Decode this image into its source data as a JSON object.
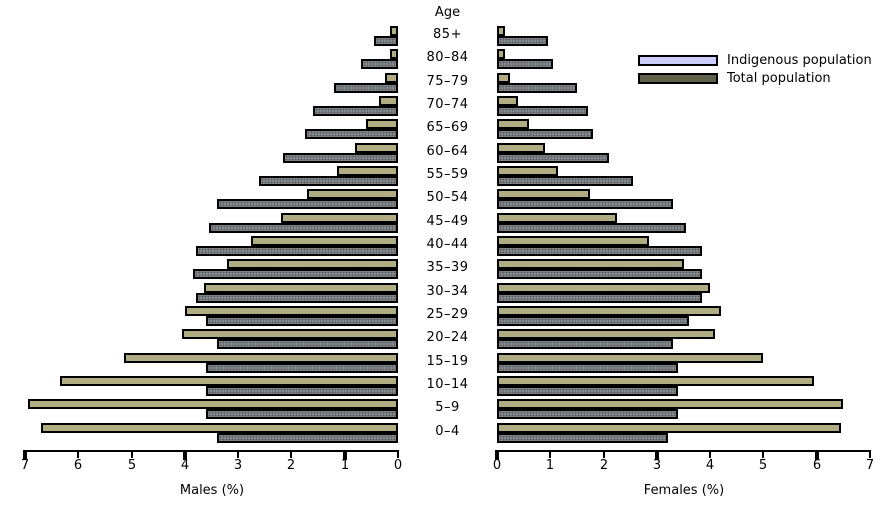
{
  "chart_data": {
    "type": "bar",
    "subtype": "population_pyramid_grouped_horizontal",
    "age_axis_title": "Age",
    "age_groups": [
      "85+",
      "80–84",
      "75–79",
      "70–74",
      "65–69",
      "60–64",
      "55–59",
      "50–54",
      "45–49",
      "40–44",
      "35–39",
      "30–34",
      "25–29",
      "20–24",
      "15–19",
      "10–14",
      "5–9",
      "0–4"
    ],
    "legend": [
      {
        "label": "Indigenous population",
        "swatch_color": "#ccccff"
      },
      {
        "label": "Total population",
        "swatch_color": "#60604a"
      }
    ],
    "legend_position": "top-right",
    "grid": false,
    "x_max": 7,
    "bar_colors": {
      "indigenous": "#b1ad83",
      "total": "#7e8a8b"
    },
    "males": {
      "axis_label": "Males (%)",
      "tick_labels": [
        "7",
        "6",
        "5",
        "4",
        "3",
        "2",
        "1",
        "0"
      ],
      "major_ticks": [
        "7",
        "4",
        "1"
      ],
      "indigenous": [
        0.15,
        0.15,
        0.25,
        0.35,
        0.6,
        0.8,
        1.15,
        1.7,
        2.2,
        2.75,
        3.2,
        3.65,
        4.0,
        4.05,
        5.15,
        6.35,
        6.95,
        6.7
      ],
      "total": [
        0.45,
        0.7,
        1.2,
        1.6,
        1.75,
        2.15,
        2.6,
        3.4,
        3.55,
        3.8,
        3.85,
        3.8,
        3.6,
        3.4,
        3.6,
        3.6,
        3.6,
        3.4
      ]
    },
    "females": {
      "axis_label": "Females (%)",
      "tick_labels": [
        "0",
        "1",
        "2",
        "3",
        "4",
        "5",
        "6",
        "7"
      ],
      "major_ticks": [
        "0",
        "3",
        "6"
      ],
      "indigenous": [
        0.15,
        0.15,
        0.25,
        0.4,
        0.6,
        0.9,
        1.15,
        1.75,
        2.25,
        2.85,
        3.5,
        4.0,
        4.2,
        4.1,
        5.0,
        5.95,
        6.5,
        6.45
      ],
      "total": [
        0.95,
        1.05,
        1.5,
        1.7,
        1.8,
        2.1,
        2.55,
        3.3,
        3.55,
        3.85,
        3.85,
        3.85,
        3.6,
        3.3,
        3.4,
        3.4,
        3.4,
        3.2
      ]
    }
  }
}
